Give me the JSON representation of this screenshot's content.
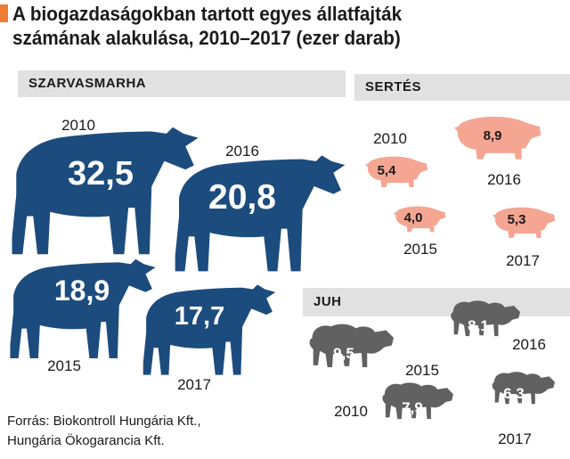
{
  "title_line1": "A biogazdaságokban tartott egyes állatfajták",
  "title_line2": "számának alakulása, 2010–2017 (ezer darab)",
  "source_line1": "Forrás: Biokontroll Hungária Kft.,",
  "source_line2": "Hungária Ökogarancia Kft.",
  "colors": {
    "accent": "#ee7d31",
    "cattle": "#1c4c7d",
    "pig": "#f4a692",
    "sheep": "#616161",
    "band": "#e1e1e1"
  },
  "chart_data": {
    "type": "table",
    "categories": [
      "2010",
      "2015",
      "2016",
      "2017"
    ],
    "series": [
      {
        "name": "SZARVASMARHA",
        "values": [
          32.5,
          18.9,
          20.8,
          17.7
        ],
        "labels": [
          "32,5",
          "18,9",
          "20,8",
          "17,7"
        ]
      },
      {
        "name": "SERTÉS",
        "values": [
          5.4,
          4.0,
          8.9,
          5.3
        ],
        "labels": [
          "5,4",
          "4,0",
          "8,9",
          "5,3"
        ]
      },
      {
        "name": "JUH",
        "values": [
          9.5,
          7.9,
          8.1,
          6.3
        ],
        "labels": [
          "9,5",
          "7,9",
          "8,1",
          "6,3"
        ]
      }
    ]
  }
}
